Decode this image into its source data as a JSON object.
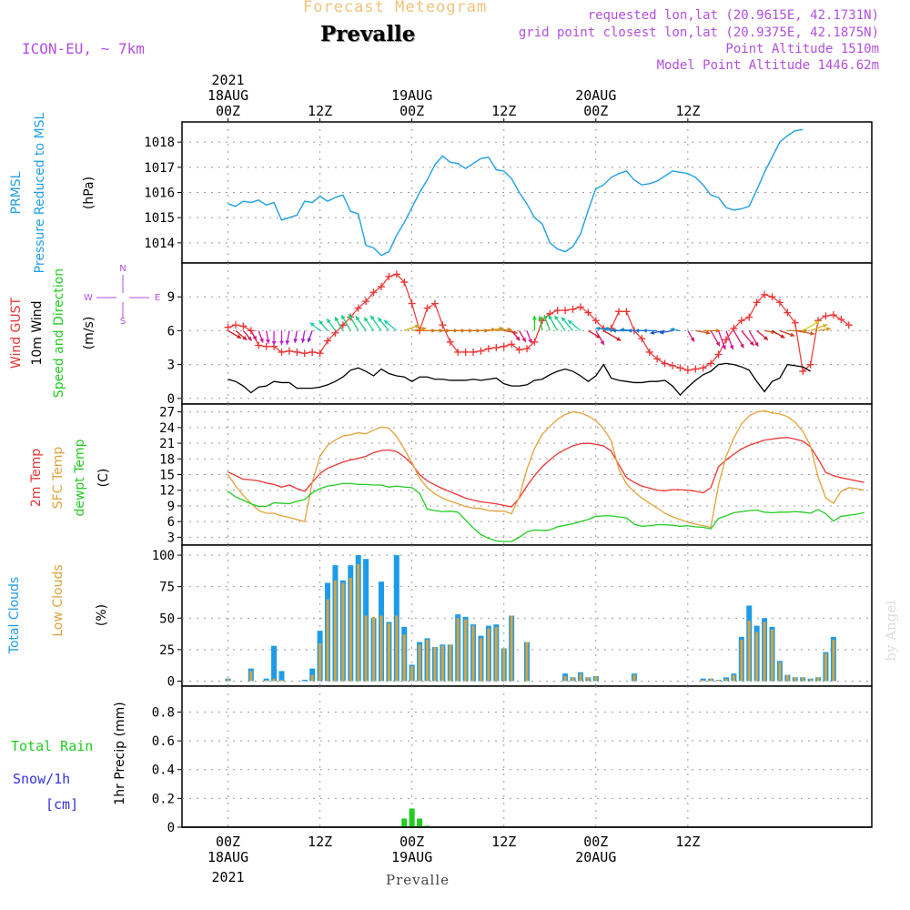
{
  "header": {
    "title": "Forecast Meteogram",
    "station": "Prevalle",
    "model": "ICON-EU, ~ 7km",
    "requested": "requested lon,lat (20.9615E, 42.1731N)",
    "grid_point": "grid point closest lon,lat (20.9375E, 42.1875N)",
    "point_altitude": "Point Altitude 1510m",
    "model_altitude": "Model Point Altitude 1446.62m",
    "credit": "by Angel",
    "footer": "Prevalle"
  },
  "colors": {
    "pressure": "#1f9fe8",
    "gust": "#ee3333",
    "wind": "#000000",
    "direction": "#22cc22",
    "t2m": "#ee3333",
    "sfc": "#e3a23a",
    "dewpt": "#22cc22",
    "total_clouds": "#1c9ce8",
    "low_clouds": "#d9a33c",
    "rain": "#22cc22",
    "snow": "#3333dd",
    "purple": "#b24fe0",
    "title_orange": "#f0c27a"
  },
  "time_axis": {
    "year": "2021",
    "top_ticks": [
      {
        "h": 0,
        "label": "00Z",
        "date": "18AUG"
      },
      {
        "h": 12,
        "label": "12Z"
      },
      {
        "h": 24,
        "label": "00Z",
        "date": "19AUG"
      },
      {
        "h": 36,
        "label": "12Z"
      },
      {
        "h": 48,
        "label": "00Z",
        "date": "20AUG"
      },
      {
        "h": 60,
        "label": "12Z"
      }
    ]
  },
  "compass": {
    "n": "N",
    "s": "S",
    "w": "W",
    "e": "E"
  },
  "chart_data": [
    {
      "type": "line",
      "ylabel_lines": [
        "PRMSL",
        "Pressure Reduced to MSL"
      ],
      "unit": "(hPa)",
      "yticks": [
        1014,
        1015,
        1016,
        1017,
        1018
      ],
      "ylim": [
        1013.2,
        1018.8
      ],
      "series": [
        {
          "values": [
            1015.55,
            1015.45,
            1015.65,
            1015.6,
            1015.7,
            1015.5,
            1015.6,
            1014.9,
            1015.0,
            1015.1,
            1015.65,
            1015.6,
            1015.85,
            1015.65,
            1015.8,
            1015.9,
            1015.25,
            1015.15,
            1013.9,
            1013.8,
            1013.5,
            1013.65,
            1014.3,
            1014.8,
            1015.4,
            1016.0,
            1016.5,
            1017.1,
            1017.45,
            1017.2,
            1017.15,
            1016.95,
            1017.15,
            1017.35,
            1017.4,
            1016.9,
            1016.85,
            1016.55,
            1016.0,
            1015.55,
            1015.0,
            1014.75,
            1014.0,
            1013.75,
            1013.65,
            1013.85,
            1014.35,
            1015.3,
            1016.15,
            1016.3,
            1016.6,
            1016.75,
            1016.85,
            1016.5,
            1016.3,
            1016.35,
            1016.45,
            1016.65,
            1016.85,
            1016.8,
            1016.75,
            1016.6,
            1016.3,
            1015.9,
            1015.8,
            1015.4,
            1015.3,
            1015.35,
            1015.45,
            1016.1,
            1016.8,
            1017.4,
            1018.0,
            1018.25,
            1018.45,
            1018.5
          ]
        }
      ]
    },
    {
      "type": "line",
      "ylabel_lines": [
        "Wind GUST",
        "10m Wind",
        "Speed and Direction"
      ],
      "unit": "(m/s)",
      "yticks": [
        0,
        3,
        6,
        9
      ],
      "ylim": [
        -0.5,
        12
      ],
      "series": [
        {
          "values": [
            6.3,
            6.5,
            6.4,
            6.0,
            4.7,
            4.6,
            4.6,
            4.1,
            4.2,
            4.1,
            4.0,
            4.1,
            4.0,
            5.1,
            5.8,
            6.5,
            7.2,
            8.0,
            8.6,
            9.4,
            9.9,
            10.8,
            11.0,
            10.3,
            8.4,
            6.0,
            8.0,
            8.4,
            6.5,
            5.0,
            4.1,
            4.1,
            4.1,
            4.2,
            4.4,
            4.5,
            4.6,
            4.8,
            4.3,
            4.4,
            5.0,
            6.9,
            7.5,
            7.8,
            7.8,
            7.9,
            8.1,
            7.6,
            6.9,
            6.2,
            6.2,
            7.7,
            7.7,
            6.0,
            5.3,
            4.1,
            3.5,
            3.1,
            2.9,
            2.7,
            2.5,
            2.6,
            2.7,
            3.1,
            3.9,
            5.2,
            6.2,
            6.9,
            7.2,
            8.5,
            9.2,
            9.0,
            8.5,
            7.6,
            6.7,
            2.4,
            3.0,
            6.9,
            7.3,
            7.4,
            7.0,
            6.5
          ]
        },
        {
          "values": [
            1.7,
            1.5,
            1.1,
            0.5,
            1.0,
            1.1,
            1.5,
            1.4,
            1.4,
            0.9,
            0.9,
            0.9,
            1.0,
            1.2,
            1.5,
            1.9,
            2.5,
            2.7,
            2.4,
            2.0,
            2.6,
            2.2,
            2.0,
            1.9,
            1.5,
            1.9,
            1.9,
            1.7,
            1.7,
            1.6,
            1.6,
            1.6,
            1.7,
            1.6,
            1.7,
            1.8,
            1.3,
            1.1,
            1.1,
            1.2,
            1.6,
            1.7,
            2.1,
            2.4,
            2.6,
            2.4,
            2.0,
            1.5,
            2.0,
            3.0,
            1.8,
            1.6,
            1.5,
            1.4,
            1.4,
            1.5,
            1.5,
            1.6,
            1.1,
            0.3,
            1.0,
            1.6,
            2.1,
            2.4,
            3.0,
            3.1,
            3.0,
            2.8,
            2.5,
            1.5,
            0.6,
            1.5,
            1.8,
            3.0,
            2.9,
            2.8,
            2.4
          ]
        },
        {
          "dir_deg": [
            300,
            310,
            320,
            330,
            340,
            350,
            0,
            0,
            10,
            10,
            10,
            20,
            130,
            140,
            145,
            150,
            150,
            150,
            145,
            145,
            145,
            140,
            130,
            250,
            260,
            270,
            270,
            270,
            270,
            270,
            270,
            270,
            270,
            265,
            260,
            265,
            280,
            320,
            330,
            340,
            180,
            170,
            160,
            150,
            145,
            140,
            130,
            300,
            330,
            300,
            100,
            100,
            90,
            95,
            90,
            90,
            90,
            80,
            80,
            100,
            330,
            280,
            270,
            330,
            340,
            340,
            330,
            320,
            330,
            310,
            280,
            300,
            290,
            270,
            280,
            240,
            250,
            260
          ]
        }
      ]
    },
    {
      "type": "line",
      "ylabel_lines": [
        "2m Temp",
        "SFC Temp",
        "dewpt Temp"
      ],
      "unit": "(C)",
      "yticks": [
        3,
        6,
        9,
        12,
        15,
        18,
        21,
        24,
        27
      ],
      "ylim": [
        1.5,
        28.5
      ],
      "series": [
        {
          "values": [
            15.5,
            14.8,
            14.1,
            14.0,
            13.8,
            13.4,
            13.1,
            12.6,
            13.0,
            12.3,
            11.8,
            13.5,
            15.2,
            16.2,
            16.8,
            17.4,
            17.8,
            18.1,
            18.5,
            19.2,
            19.6,
            19.7,
            19.4,
            18.4,
            17.0,
            15.0,
            13.8,
            13.0,
            12.3,
            11.7,
            11.1,
            10.5,
            10.1,
            9.8,
            9.6,
            9.4,
            9.1,
            8.8,
            10.5,
            12.8,
            14.8,
            16.5,
            17.8,
            19.0,
            19.8,
            20.5,
            20.9,
            21.0,
            20.8,
            20.5,
            19.5,
            16.9,
            14.4,
            13.5,
            12.8,
            12.4,
            12.0,
            11.9,
            12.1,
            12.1,
            12.0,
            11.8,
            11.5,
            12.5,
            16.5,
            17.8,
            18.9,
            19.9,
            20.6,
            21.1,
            21.6,
            21.8,
            22.0,
            22.1,
            21.8,
            21.4,
            20.3,
            18.0,
            15.4,
            14.8,
            14.4,
            14.1,
            13.8,
            13.5
          ]
        },
        {
          "values": [
            15.0,
            12.8,
            11.0,
            9.5,
            8.1,
            7.6,
            7.6,
            7.1,
            6.8,
            6.4,
            6.0,
            13.5,
            18.5,
            20.6,
            21.6,
            22.4,
            22.6,
            23.0,
            22.8,
            23.5,
            24.1,
            23.9,
            22.3,
            19.9,
            17.3,
            14.3,
            12.5,
            11.3,
            10.5,
            9.9,
            9.4,
            8.9,
            8.6,
            8.5,
            8.1,
            8.0,
            8.0,
            7.5,
            10.7,
            16.0,
            20.0,
            22.7,
            24.2,
            25.6,
            26.5,
            27.0,
            26.8,
            26.2,
            25.3,
            23.8,
            21.5,
            16.0,
            13.2,
            11.7,
            10.5,
            9.5,
            8.6,
            7.6,
            6.9,
            6.4,
            5.9,
            5.5,
            5.2,
            4.9,
            13.0,
            18.5,
            22.0,
            24.7,
            26.2,
            27.0,
            27.2,
            26.8,
            26.6,
            26.1,
            25.0,
            23.3,
            20.5,
            14.5,
            10.5,
            9.5,
            11.8,
            12.5,
            12.3,
            12.0
          ]
        },
        {
          "values": [
            11.8,
            10.7,
            10.1,
            9.4,
            8.9,
            8.9,
            9.6,
            9.5,
            9.4,
            9.9,
            10.2,
            11.5,
            12.3,
            12.8,
            13.0,
            13.3,
            13.3,
            13.1,
            13.1,
            13.0,
            13.0,
            12.6,
            12.8,
            12.6,
            12.5,
            11.4,
            8.4,
            8.1,
            7.9,
            8.0,
            7.8,
            6.3,
            4.8,
            3.5,
            2.8,
            2.3,
            2.2,
            2.2,
            3.0,
            4.0,
            4.4,
            4.3,
            4.4,
            5.0,
            5.3,
            5.6,
            6.0,
            6.4,
            7.0,
            7.1,
            7.1,
            6.9,
            6.7,
            5.5,
            5.1,
            5.2,
            5.4,
            5.4,
            5.3,
            5.1,
            5.2,
            5.0,
            4.9,
            4.6,
            6.6,
            7.1,
            7.7,
            7.9,
            8.1,
            8.2,
            7.8,
            7.7,
            7.8,
            7.8,
            7.9,
            7.8,
            7.6,
            8.3,
            7.5,
            6.1,
            7.0,
            7.2,
            7.4,
            7.7
          ]
        }
      ]
    },
    {
      "type": "bar",
      "ylabel_lines": [
        "Total Clouds",
        "Low Clouds"
      ],
      "unit": "(%)",
      "yticks": [
        0,
        25,
        50,
        75,
        100
      ],
      "ylim": [
        -4,
        108
      ],
      "series": [
        {
          "values": [
            2,
            0,
            0,
            10,
            0,
            2,
            28,
            8,
            0,
            0,
            1,
            10,
            40,
            78,
            92,
            80,
            92,
            100,
            97,
            50,
            79,
            47,
            100,
            43,
            13,
            31,
            34,
            27,
            29,
            29,
            53,
            51,
            45,
            36,
            44,
            45,
            26,
            52,
            0,
            31,
            0,
            0,
            0,
            0,
            6,
            3,
            7,
            3,
            4,
            0,
            0,
            0,
            0,
            6,
            0,
            0,
            0,
            0,
            0,
            0,
            0,
            0,
            2,
            2,
            1,
            3,
            6,
            35,
            60,
            44,
            50,
            43,
            16,
            5,
            3,
            3,
            2,
            3,
            23,
            35
          ]
        },
        {
          "values": [
            2,
            0,
            0,
            8,
            0,
            1,
            2,
            1,
            0,
            0,
            0,
            5,
            30,
            65,
            80,
            78,
            82,
            93,
            52,
            51,
            52,
            46,
            52,
            37,
            12,
            29,
            33,
            27,
            28,
            29,
            50,
            49,
            44,
            34,
            42,
            43,
            26,
            52,
            0,
            31,
            0,
            0,
            0,
            0,
            4,
            3,
            6,
            3,
            4,
            0,
            0,
            0,
            0,
            5,
            0,
            0,
            0,
            0,
            0,
            0,
            0,
            0,
            1,
            2,
            1,
            2,
            5,
            33,
            48,
            39,
            47,
            41,
            15,
            5,
            3,
            3,
            2,
            3,
            22,
            33
          ]
        }
      ]
    },
    {
      "type": "bar",
      "ylabel_lines": [
        "Total  Rain",
        "Snow/1h",
        "[cm]"
      ],
      "ylabel": "1hr Precip (mm)",
      "yticks": [
        0,
        0.2,
        0.4,
        0.6,
        0.8
      ],
      "ytick_labels": [
        "0",
        "0.2",
        "0.4",
        "0.6",
        "0.8"
      ],
      "ylim": [
        0,
        0.98
      ],
      "series": [
        {
          "values": [
            0,
            0,
            0,
            0,
            0,
            0,
            0,
            0,
            0,
            0,
            0,
            0,
            0,
            0,
            0,
            0,
            0,
            0,
            0,
            0,
            0,
            0,
            0,
            0.06,
            0.13,
            0.06,
            0.01,
            0,
            0,
            0,
            0,
            0,
            0,
            0,
            0,
            0,
            0,
            0,
            0,
            0,
            0,
            0,
            0,
            0,
            0,
            0,
            0,
            0,
            0,
            0,
            0,
            0,
            0,
            0,
            0,
            0,
            0,
            0,
            0,
            0,
            0,
            0,
            0,
            0,
            0,
            0,
            0,
            0,
            0,
            0,
            0,
            0,
            0,
            0,
            0,
            0,
            0,
            0,
            0,
            0,
            0,
            0,
            0,
            0,
            0,
            0,
            0,
            0,
            0
          ]
        }
      ]
    }
  ]
}
